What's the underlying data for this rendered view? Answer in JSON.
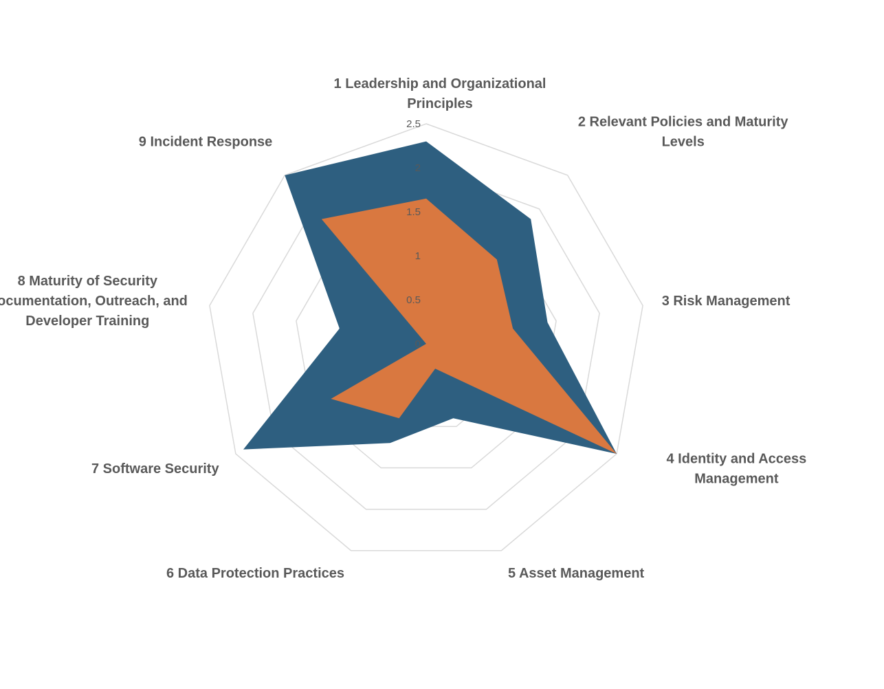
{
  "chart_data": {
    "type": "radar",
    "categories": [
      "1 Leadership and Organizational Principles",
      "2 Relevant Policies and Maturity Levels",
      "3 Risk Management",
      "4 Identity and Access Management",
      "5 Asset Management",
      "6 Data Protection Practices",
      "7 Software Security",
      "8 Maturity of Security Documentation, Outreach, and Developer Training",
      "9 Incident Response"
    ],
    "category_lines": [
      [
        "1 Leadership and Organizational",
        "Principles"
      ],
      [
        "2 Relevant Policies and Maturity",
        "Levels"
      ],
      [
        "3 Risk Management"
      ],
      [
        "4 Identity and Access",
        "Management"
      ],
      [
        "5 Asset Management"
      ],
      [
        "6 Data Protection Practices"
      ],
      [
        "7 Software Security"
      ],
      [
        "8 Maturity of Security",
        "Documentation, Outreach, and",
        "Developer Training"
      ],
      [
        "9 Incident Response"
      ]
    ],
    "series": [
      {
        "color": "#2e5f80",
        "values": [
          2.3,
          1.85,
          1.4,
          2.5,
          0.9,
          1.2,
          2.4,
          1.0,
          2.5
        ]
      },
      {
        "color": "#d97840",
        "values": [
          1.65,
          1.25,
          1.0,
          2.5,
          0.3,
          0.9,
          1.25,
          0.0,
          1.85
        ]
      }
    ],
    "rlim": [
      0,
      2.5
    ],
    "ticks": [
      "0",
      "0.5",
      "1",
      "1.5",
      "2",
      "2.5"
    ],
    "grid": true,
    "grid_color": "#d9d9d9",
    "text_color": "#595959",
    "legend": "none"
  }
}
